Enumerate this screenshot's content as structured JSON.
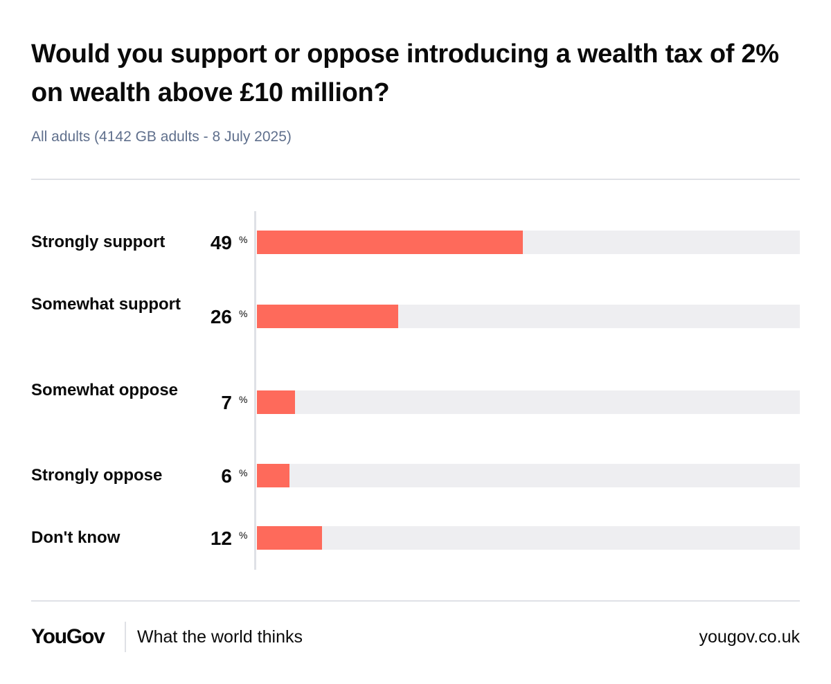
{
  "chart_data": {
    "type": "bar",
    "orientation": "horizontal",
    "title": "Would you support or oppose introducing a wealth tax of 2% on wealth above £10 million?",
    "subtitle": "All adults (4142 GB adults - 8 July 2025)",
    "unit": "%",
    "xlim": [
      0,
      100
    ],
    "categories": [
      "Strongly support",
      "Somewhat support",
      "Somewhat oppose",
      "Strongly oppose",
      "Don't know"
    ],
    "values": [
      49,
      26,
      7,
      6,
      12
    ],
    "bar_color": "#fe6a5b",
    "track_color": "#eeeef1"
  },
  "rows": [
    {
      "label": "Strongly support",
      "value": "49",
      "unit": "%"
    },
    {
      "label": "Somewhat support",
      "value": "26",
      "unit": "%"
    },
    {
      "label": "Somewhat oppose",
      "value": "7",
      "unit": "%"
    },
    {
      "label": "Strongly oppose",
      "value": "6",
      "unit": "%"
    },
    {
      "label": "Don't know",
      "value": "12",
      "unit": "%"
    }
  ],
  "footer": {
    "logo": "YouGov",
    "tagline": "What the world thinks",
    "url": "yougov.co.uk"
  }
}
